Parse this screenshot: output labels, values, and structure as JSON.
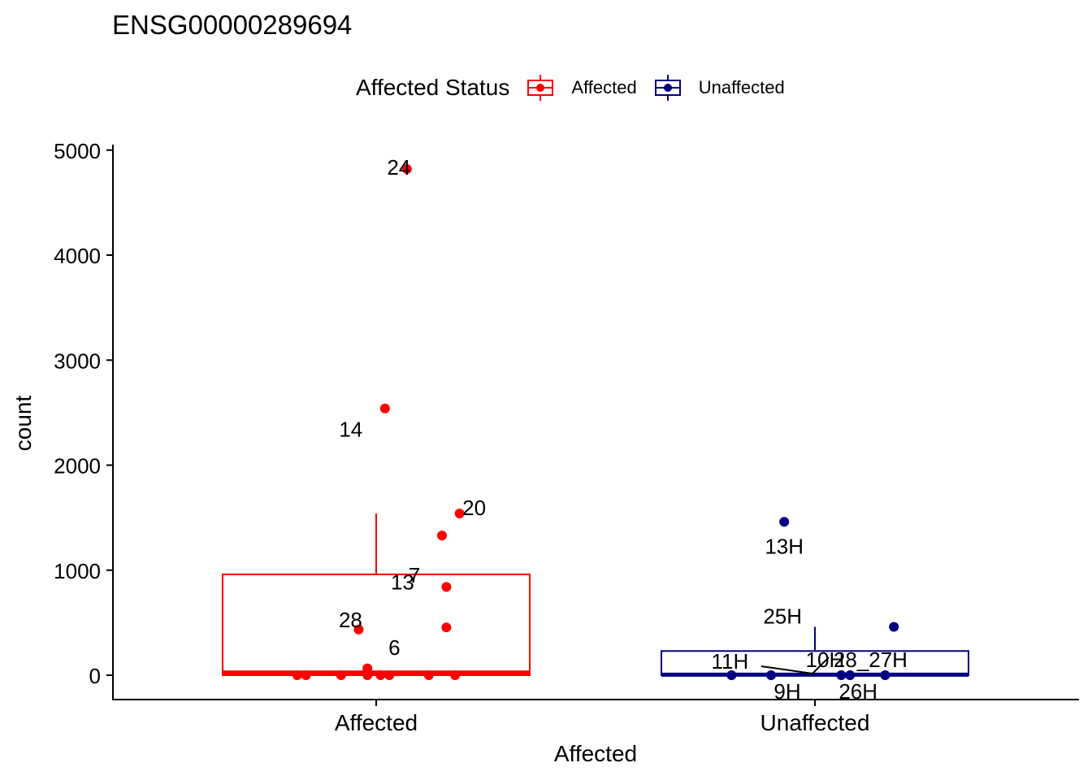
{
  "chart_data": {
    "type": "box",
    "title": "ENSG00000289694",
    "xlabel": "Affected",
    "ylabel": "count",
    "ylim": [
      -230,
      5060
    ],
    "yticks": [
      0,
      1000,
      2000,
      3000,
      4000,
      5000
    ],
    "categories": [
      "Affected",
      "Unaffected"
    ],
    "legend": {
      "title": "Affected Status",
      "position": "top",
      "items": [
        {
          "label": "Affected",
          "color": "#ff0000"
        },
        {
          "label": "Unaffected",
          "color": "#000080"
        }
      ]
    },
    "grid": false,
    "boxes": [
      {
        "category": "Affected",
        "color": "#ff0000",
        "q1": 0,
        "median": 25,
        "q3": 960,
        "whisker_low": 0,
        "whisker_high": 1540
      },
      {
        "category": "Unaffected",
        "color": "#000080",
        "q1": 0,
        "median": 5,
        "q3": 230,
        "whisker_low": 0,
        "whisker_high": 460
      }
    ],
    "points": [
      {
        "category": "Affected",
        "jitter": 0.07,
        "y": 4820,
        "label": "24"
      },
      {
        "category": "Affected",
        "jitter": 0.02,
        "y": 2540,
        "label": "14"
      },
      {
        "category": "Affected",
        "jitter": 0.19,
        "y": 1540,
        "label": "20"
      },
      {
        "category": "Affected",
        "jitter": 0.15,
        "y": 1330,
        "label": "7"
      },
      {
        "category": "Affected",
        "jitter": 0.16,
        "y": 840,
        "label": "13"
      },
      {
        "category": "Affected",
        "jitter": 0.16,
        "y": 455,
        "label": "6"
      },
      {
        "category": "Affected",
        "jitter": -0.04,
        "y": 435,
        "label": "28"
      },
      {
        "category": "Affected",
        "jitter": -0.02,
        "y": 65,
        "label": ""
      },
      {
        "category": "Affected",
        "jitter": -0.18,
        "y": 0,
        "label": ""
      },
      {
        "category": "Affected",
        "jitter": -0.16,
        "y": 0,
        "label": ""
      },
      {
        "category": "Affected",
        "jitter": -0.08,
        "y": 0,
        "label": ""
      },
      {
        "category": "Affected",
        "jitter": -0.02,
        "y": 0,
        "label": ""
      },
      {
        "category": "Affected",
        "jitter": 0.01,
        "y": 0,
        "label": ""
      },
      {
        "category": "Affected",
        "jitter": 0.03,
        "y": 0,
        "label": ""
      },
      {
        "category": "Affected",
        "jitter": 0.12,
        "y": 0,
        "label": ""
      },
      {
        "category": "Affected",
        "jitter": 0.18,
        "y": 0,
        "label": ""
      },
      {
        "category": "Unaffected",
        "jitter": -0.07,
        "y": 1460,
        "label": "13H"
      },
      {
        "category": "Unaffected",
        "jitter": 0.18,
        "y": 460,
        "label": "25H"
      },
      {
        "category": "Unaffected",
        "jitter": -0.19,
        "y": 0,
        "label": "11H"
      },
      {
        "category": "Unaffected",
        "jitter": -0.1,
        "y": 0,
        "label": "9H"
      },
      {
        "category": "Unaffected",
        "jitter": 0.06,
        "y": 0,
        "label": "10H"
      },
      {
        "category": "Unaffected",
        "jitter": 0.08,
        "y": 0,
        "label": "26H"
      },
      {
        "category": "Unaffected",
        "jitter": 0.16,
        "y": 0,
        "label": "28_27H"
      }
    ]
  }
}
